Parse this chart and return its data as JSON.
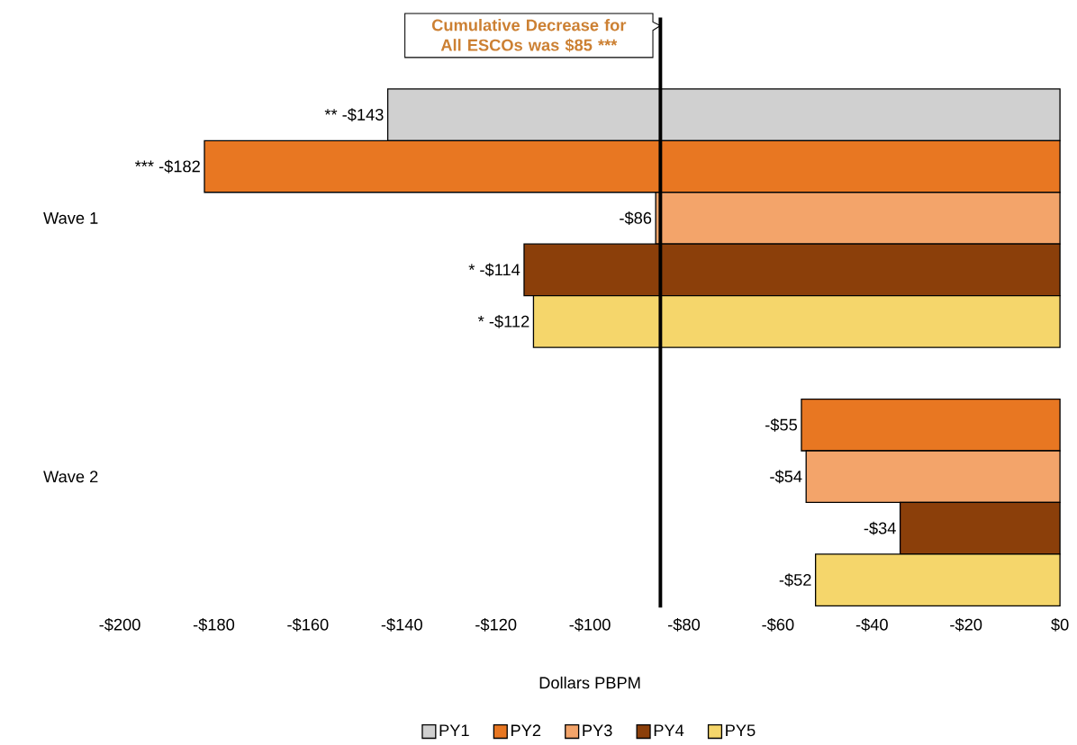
{
  "chart_data": {
    "type": "bar",
    "orientation": "horizontal",
    "xlabel": "Dollars PBPM",
    "categories": [
      "Wave 1",
      "Wave 2"
    ],
    "series": [
      {
        "name": "PY1",
        "color": "#d0d0d0",
        "values": [
          -143,
          null
        ],
        "value_labels": [
          "** -$143",
          null
        ]
      },
      {
        "name": "PY2",
        "color": "#e87722",
        "values": [
          -182,
          -55
        ],
        "value_labels": [
          "*** -$182",
          "-$55"
        ]
      },
      {
        "name": "PY3",
        "color": "#f3a46a",
        "values": [
          -86,
          -54
        ],
        "value_labels": [
          "-$86",
          "-$54"
        ]
      },
      {
        "name": "PY4",
        "color": "#8b3f0a",
        "values": [
          -114,
          -34
        ],
        "value_labels": [
          "* -$114",
          "-$34"
        ]
      },
      {
        "name": "PY5",
        "color": "#f5d66b",
        "values": [
          -112,
          -52
        ],
        "value_labels": [
          "* -$112",
          "-$52"
        ]
      }
    ],
    "xlim": [
      -200,
      0
    ],
    "xticks": [
      {
        "value": -200,
        "label": "-$200"
      },
      {
        "value": -180,
        "label": "-$180"
      },
      {
        "value": -160,
        "label": "-$160"
      },
      {
        "value": -140,
        "label": "-$140"
      },
      {
        "value": -120,
        "label": "-$120"
      },
      {
        "value": -100,
        "label": "-$100"
      },
      {
        "value": -80,
        "label": "-$80"
      },
      {
        "value": -60,
        "label": "-$60"
      },
      {
        "value": -40,
        "label": "-$40"
      },
      {
        "value": -20,
        "label": "-$20"
      },
      {
        "value": 0,
        "label": "$0"
      }
    ],
    "ref_lines": [
      {
        "axis": "x",
        "value": -85,
        "label": "Cumulative Decrease for All ESCOs was $85 ***",
        "color": "#000000"
      }
    ],
    "legend": "bottom"
  }
}
